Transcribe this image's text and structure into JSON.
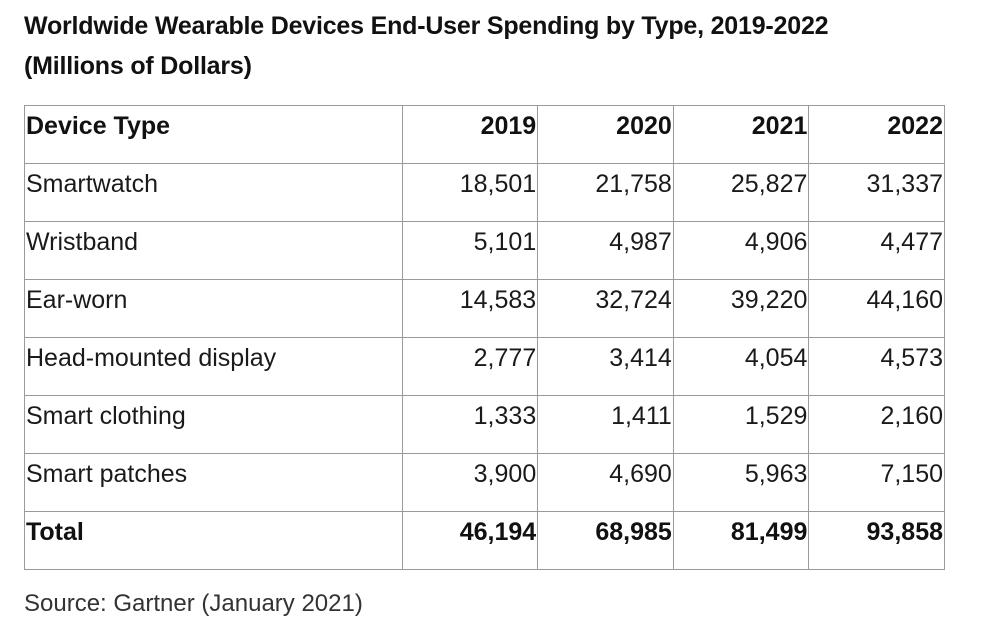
{
  "title_line1": "Worldwide Wearable Devices End-User Spending by Type, 2019-2022",
  "title_line2": "(Millions of Dollars)",
  "source": "Source: Gartner (January 2021)",
  "chart_data": {
    "type": "table",
    "title": "Worldwide Wearable Devices End-User Spending by Type, 2019-2022 (Millions of Dollars)",
    "columns": [
      "Device Type",
      "2019",
      "2020",
      "2021",
      "2022"
    ],
    "rows": [
      [
        "Smartwatch",
        "18,501",
        "21,758",
        "25,827",
        "31,337"
      ],
      [
        "Wristband",
        "5,101",
        "4,987",
        "4,906",
        "4,477"
      ],
      [
        "Ear-worn",
        "14,583",
        "32,724",
        "39,220",
        "44,160"
      ],
      [
        "Head-mounted display",
        "2,777",
        "3,414",
        "4,054",
        "4,573"
      ],
      [
        "Smart clothing",
        "1,333",
        "1,411",
        "1,529",
        "2,160"
      ],
      [
        "Smart patches",
        "3,900",
        "4,690",
        "5,963",
        "7,150"
      ]
    ],
    "total": [
      "Total",
      "46,194",
      "68,985",
      "81,499",
      "93,858"
    ]
  }
}
